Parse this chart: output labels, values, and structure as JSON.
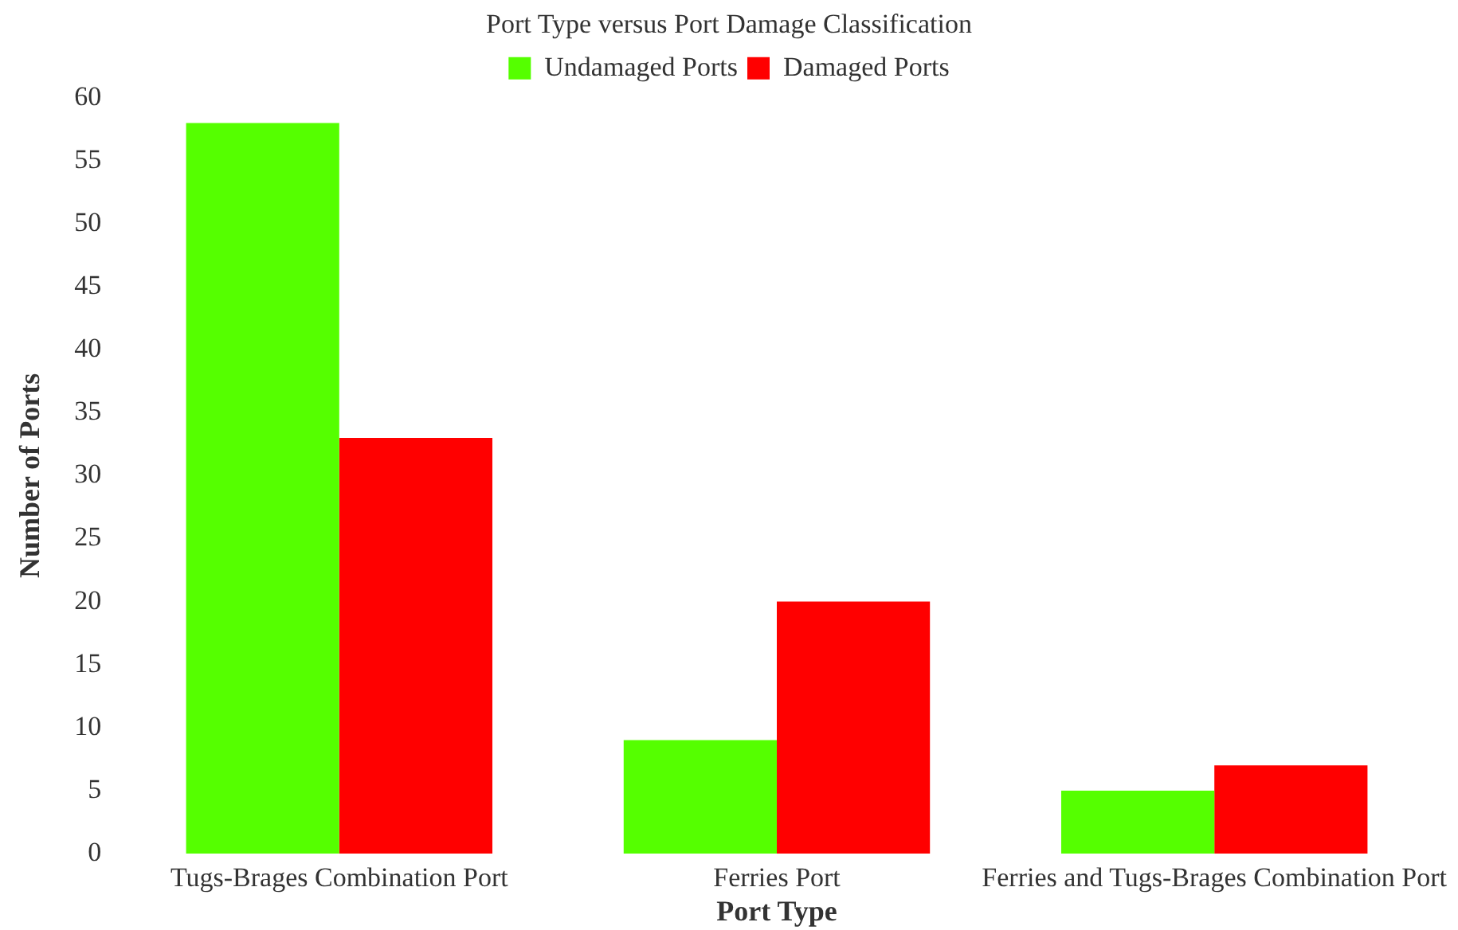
{
  "chart_data": {
    "type": "bar",
    "title": "Port Type versus Port Damage Classification",
    "xlabel": "Port Type",
    "ylabel": "Number of Ports",
    "categories": [
      "Tugs-Brages Combination Port",
      "Ferries Port",
      "Ferries and Tugs-Brages Combination Port"
    ],
    "series": [
      {
        "name": "Undamaged Ports",
        "color": "#55ff00",
        "values": [
          58,
          9,
          5
        ]
      },
      {
        "name": "Damaged Ports",
        "color": "#ff0000",
        "values": [
          33,
          20,
          7
        ]
      }
    ],
    "ylim": [
      0,
      60
    ],
    "yticks": [
      0,
      5,
      10,
      15,
      20,
      25,
      30,
      35,
      40,
      45,
      50,
      55,
      60
    ],
    "grid": false,
    "legend": "top"
  }
}
